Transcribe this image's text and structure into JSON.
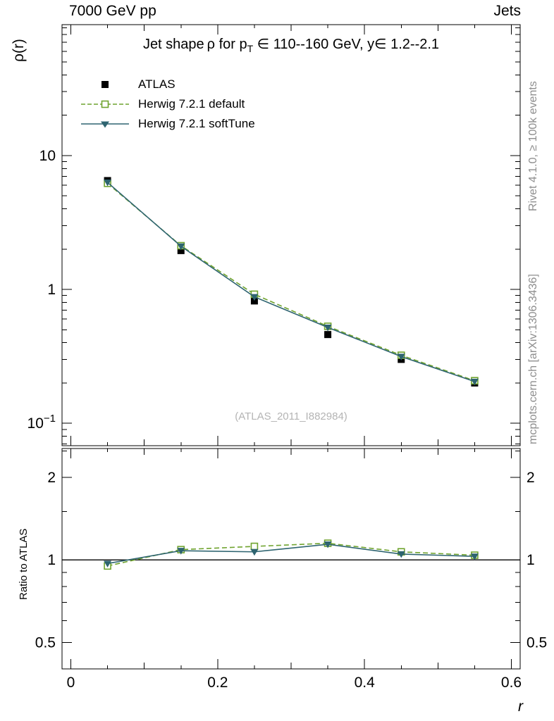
{
  "header": {
    "left": "7000 GeV pp",
    "right": "Jets"
  },
  "main_panel": {
    "title_parts": {
      "pre": "Jet shape ρ for p",
      "sub": "T",
      "post": " ∈ 110--160 GeV, y∈ 1.2--2.1"
    },
    "ylabel": "ρ(r)",
    "watermark": "(ATLAS_2011_I882984)"
  },
  "ratio_panel": {
    "ylabel": "Ratio to ATLAS"
  },
  "xlabel": "r",
  "sidebar": {
    "top": "Rivet 4.1.0, ≥ 100k events",
    "bottom": "mcplots.cern.ch [arXiv:1306.3436]"
  },
  "legend": {
    "items": [
      {
        "label": "ATLAS"
      },
      {
        "label": "Herwig 7.2.1 default"
      },
      {
        "label": "Herwig 7.2.1 softTune"
      }
    ]
  },
  "colors": {
    "frame": "#000000",
    "atlas": "#000000",
    "herwig_default": "#6fa32e",
    "herwig_softtune": "#2e6470",
    "watermark": "#b4b4b4",
    "side_text": "#8e8e8e"
  },
  "chart_data": [
    {
      "type": "line",
      "panel": "main",
      "title": "Jet shape ρ for pT ∈ 110--160 GeV, y ∈ 1.2--2.1",
      "xlabel": "r",
      "ylabel": "ρ(r)",
      "yscale": "log",
      "xlim": [
        -0.012,
        0.612
      ],
      "ylim": [
        0.068,
        95
      ],
      "grid": false,
      "legend_position": "upper-left-inside",
      "x": [
        0.05,
        0.15,
        0.25,
        0.35,
        0.45,
        0.55
      ],
      "series": [
        {
          "name": "ATLAS",
          "color": "#000000",
          "line": "none",
          "marker": "filled-square",
          "values": [
            6.5,
            1.95,
            0.82,
            0.46,
            0.3,
            0.2
          ]
        },
        {
          "name": "Herwig 7.2.1 default",
          "color": "#6fa32e",
          "line": "dashed",
          "marker": "open-square",
          "values": [
            6.2,
            2.12,
            0.92,
            0.53,
            0.322,
            0.208
          ]
        },
        {
          "name": "Herwig 7.2.1 softTune",
          "color": "#2e6470",
          "line": "solid",
          "marker": "filled-triangle-down",
          "values": [
            6.3,
            2.1,
            0.88,
            0.52,
            0.315,
            0.205
          ]
        }
      ],
      "xticks": [
        {
          "value": 0,
          "label": "0"
        },
        {
          "value": 0.2,
          "label": "0.2"
        },
        {
          "value": 0.4,
          "label": "0.4"
        },
        {
          "value": 0.6,
          "label": "0.6"
        }
      ],
      "yticks": [
        {
          "value": 10,
          "label": "10"
        },
        {
          "value": 1,
          "label": "1"
        },
        {
          "value": 0.1,
          "label": "10",
          "exponent": "−1"
        }
      ]
    },
    {
      "type": "line",
      "panel": "ratio",
      "ylabel": "Ratio to ATLAS",
      "yscale": "log",
      "ylim": [
        0.4,
        2.55
      ],
      "reference_line": 1,
      "x": [
        0.05,
        0.15,
        0.25,
        0.35,
        0.45,
        0.55
      ],
      "series": [
        {
          "name": "Herwig 7.2.1 default",
          "color": "#6fa32e",
          "line": "dashed",
          "marker": "open-square",
          "values": [
            0.95,
            1.09,
            1.12,
            1.15,
            1.07,
            1.04
          ]
        },
        {
          "name": "Herwig 7.2.1 softTune",
          "color": "#2e6470",
          "line": "solid",
          "marker": "filled-triangle-down",
          "values": [
            0.97,
            1.08,
            1.07,
            1.14,
            1.05,
            1.03
          ]
        }
      ],
      "yticks": [
        {
          "value": 2,
          "label": "2"
        },
        {
          "value": 1,
          "label": "1"
        },
        {
          "value": 0.5,
          "label": "0.5"
        }
      ],
      "yminorticks": [
        0.6,
        0.7,
        0.8,
        0.9,
        1.5,
        2.5
      ]
    }
  ]
}
